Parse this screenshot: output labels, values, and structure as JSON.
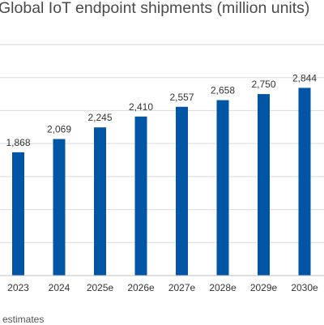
{
  "chart_data": {
    "type": "bar",
    "title": "Global IoT endpoint shipments (million units)",
    "categories": [
      "2023",
      "2024",
      "2025e",
      "2026e",
      "2027e",
      "2028e",
      "2029e",
      "2030e"
    ],
    "values": [
      1868,
      2069,
      2245,
      2410,
      2557,
      2658,
      2750,
      2844
    ],
    "value_labels": [
      "1,868",
      "2,069",
      "2,245",
      "2,410",
      "2,557",
      "2,658",
      "2,750",
      "2,844"
    ],
    "ylim": [
      0,
      3500
    ],
    "grid": true,
    "bar_color": "#0055a4",
    "note": "estimates"
  }
}
